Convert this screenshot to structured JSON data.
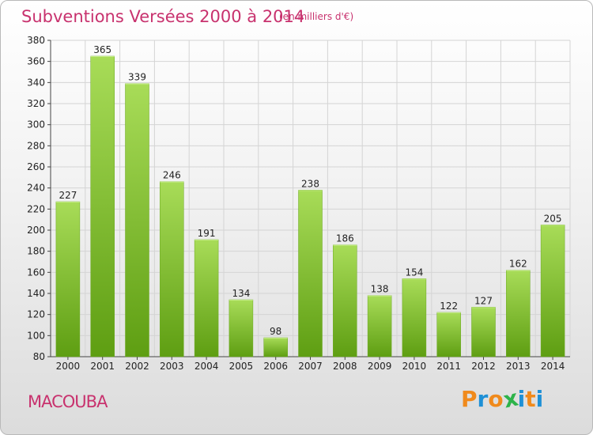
{
  "title": "Subventions Versées 2000 à 2014",
  "subtitle": "(en milliers d'€)",
  "commune": "MACOUBA",
  "logo": {
    "letters": [
      "P",
      "r",
      "o",
      "x",
      "i",
      "t",
      "i"
    ],
    "colors": [
      "#f08a1c",
      "#1e90d6",
      "#f08a1c",
      "#2db34a",
      "#1e90d6",
      "#f08a1c",
      "#1e90d6"
    ]
  },
  "colors": {
    "accent": "#c8326e",
    "bar_light": "#a8dc58",
    "bar_dark": "#5e9e12"
  },
  "chart_data": {
    "type": "bar",
    "categories": [
      "2000",
      "2001",
      "2002",
      "2003",
      "2004",
      "2005",
      "2006",
      "2007",
      "2008",
      "2009",
      "2010",
      "2011",
      "2012",
      "2013",
      "2014"
    ],
    "values": [
      227,
      365,
      339,
      246,
      191,
      134,
      98,
      238,
      186,
      138,
      154,
      122,
      127,
      162,
      205
    ],
    "ylim": [
      80,
      380
    ],
    "yticks": [
      80,
      100,
      120,
      140,
      160,
      180,
      200,
      220,
      240,
      260,
      280,
      300,
      320,
      340,
      360,
      380
    ],
    "grid": true,
    "data_labels": true
  }
}
